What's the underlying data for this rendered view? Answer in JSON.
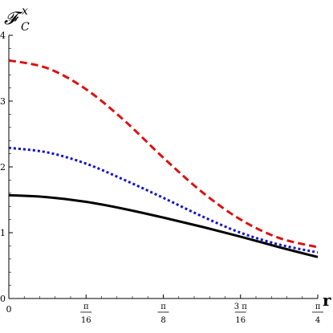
{
  "chart_data": {
    "type": "line",
    "xlabel": "r",
    "ylabel": {
      "main": "𝓕",
      "sup": "x",
      "sub": "C"
    },
    "xlim": [
      0,
      0.7853981634
    ],
    "ylim": [
      0,
      4
    ],
    "y_ticks": [
      {
        "value": 0,
        "label": "0"
      },
      {
        "value": 1,
        "label": "1"
      },
      {
        "value": 2,
        "label": "2"
      },
      {
        "value": 3,
        "label": "3"
      },
      {
        "value": 4,
        "label": "4"
      }
    ],
    "x_ticks": [
      {
        "value": 0,
        "label": "0",
        "frac": false
      },
      {
        "value": 0.1963495408,
        "num": "π",
        "den": "16",
        "frac": true
      },
      {
        "value": 0.3926990817,
        "num": "π",
        "den": "8",
        "frac": true
      },
      {
        "value": 0.5890486225,
        "num": "3 π",
        "den": "16",
        "frac": true
      },
      {
        "value": 0.7853981634,
        "num": "π",
        "den": "4",
        "frac": true
      }
    ],
    "series": [
      {
        "color": "#dd1111",
        "style": "dashed",
        "x": [
          0,
          0.0982,
          0.1963,
          0.2945,
          0.3927,
          0.4909,
          0.589,
          0.6872,
          0.7854
        ],
        "values": [
          3.62,
          3.5,
          3.18,
          2.7,
          2.14,
          1.62,
          1.2,
          0.92,
          0.78
        ]
      },
      {
        "color": "#1111cc",
        "style": "dotted",
        "x": [
          0,
          0.0982,
          0.1963,
          0.2945,
          0.3927,
          0.4909,
          0.589,
          0.6872,
          0.7854
        ],
        "values": [
          2.29,
          2.22,
          2.05,
          1.8,
          1.53,
          1.25,
          1.0,
          0.82,
          0.7
        ]
      },
      {
        "color": "#000000",
        "style": "solid",
        "x": [
          0,
          0.0982,
          0.1963,
          0.2945,
          0.3927,
          0.4909,
          0.589,
          0.6872,
          0.7854
        ],
        "values": [
          1.57,
          1.54,
          1.47,
          1.36,
          1.23,
          1.09,
          0.94,
          0.78,
          0.63
        ]
      }
    ]
  }
}
